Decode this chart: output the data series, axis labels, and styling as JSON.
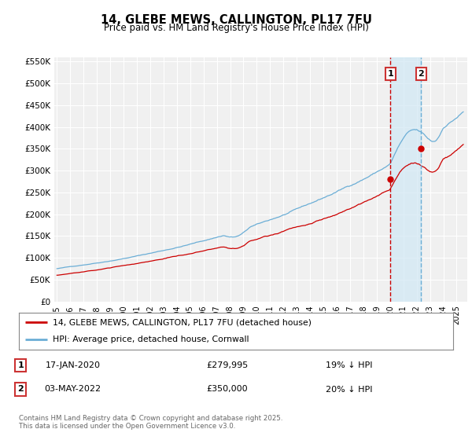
{
  "title": "14, GLEBE MEWS, CALLINGTON, PL17 7FU",
  "subtitle": "Price paid vs. HM Land Registry's House Price Index (HPI)",
  "ylim": [
    0,
    560000
  ],
  "yticks": [
    0,
    50000,
    100000,
    150000,
    200000,
    250000,
    300000,
    350000,
    400000,
    450000,
    500000,
    550000
  ],
  "ytick_labels": [
    "£0",
    "£50K",
    "£100K",
    "£150K",
    "£200K",
    "£250K",
    "£300K",
    "£350K",
    "£400K",
    "£450K",
    "£500K",
    "£550K"
  ],
  "background_color": "#ffffff",
  "plot_bg_color": "#f0f0f0",
  "grid_color": "#ffffff",
  "hpi_color": "#6baed6",
  "price_color": "#cc0000",
  "vspan_color": "#d0e8f5",
  "marker1_date_x": 2020.04,
  "marker2_date_x": 2022.34,
  "marker1_price": 279995,
  "marker2_price": 350000,
  "marker1_label": "17-JAN-2020",
  "marker2_label": "03-MAY-2022",
  "marker1_hpi_pct": "19% ↓ HPI",
  "marker2_hpi_pct": "20% ↓ HPI",
  "legend_line1": "14, GLEBE MEWS, CALLINGTON, PL17 7FU (detached house)",
  "legend_line2": "HPI: Average price, detached house, Cornwall",
  "footnote": "Contains HM Land Registry data © Crown copyright and database right 2025.\nThis data is licensed under the Open Government Licence v3.0.",
  "xmin": 1994.8,
  "xmax": 2025.8,
  "xtick_years": [
    1995,
    1996,
    1997,
    1998,
    1999,
    2000,
    2001,
    2002,
    2003,
    2004,
    2005,
    2006,
    2007,
    2008,
    2009,
    2010,
    2011,
    2012,
    2013,
    2014,
    2015,
    2016,
    2017,
    2018,
    2019,
    2020,
    2021,
    2022,
    2023,
    2024,
    2025
  ]
}
